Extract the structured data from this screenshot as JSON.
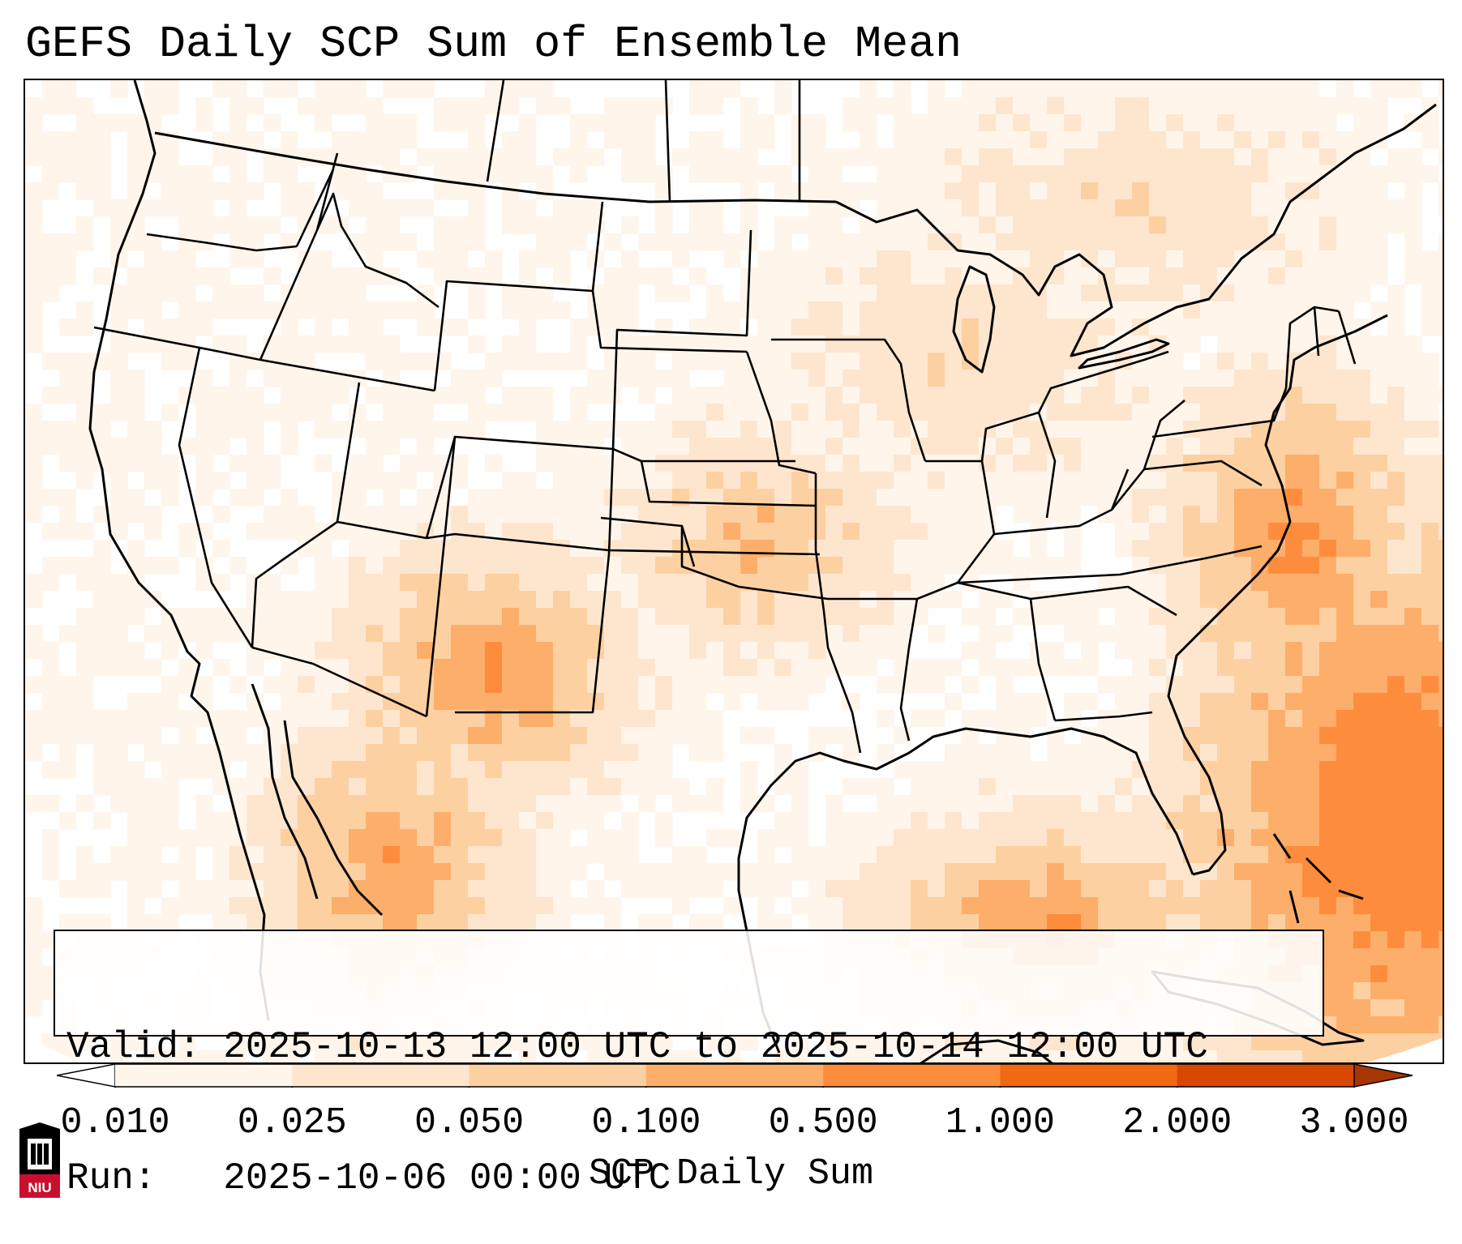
{
  "title": "GEFS Daily SCP Sum of Ensemble Mean",
  "info": {
    "valid_line": "Valid: 2025-10-13 12:00 UTC to 2025-10-14 12:00 UTC",
    "run_line": "Run:   2025-10-06 00:00 UTC"
  },
  "colorbar": {
    "label": "SCP Daily Sum",
    "ticks": [
      "0.010",
      "0.025",
      "0.050",
      "0.100",
      "0.500",
      "1.000",
      "2.000",
      "3.000"
    ],
    "colors": [
      "#fff5eb",
      "#fee6ce",
      "#fdd0a2",
      "#fdae6b",
      "#fd8d3c",
      "#f16913",
      "#d94801"
    ],
    "extend": "both"
  },
  "map": {
    "projection": "Lambert conformal, CONUS",
    "field": "SCP daily sum, ensemble mean",
    "regions": [
      {
        "name": "Southwest / Four Corners",
        "level": "0.100-0.500"
      },
      {
        "name": "Southern Plains",
        "level": "0.050-0.500"
      },
      {
        "name": "Central Plains",
        "level": "0.050-0.100"
      },
      {
        "name": "Gulf of Mexico",
        "level": "0.050-0.500"
      },
      {
        "name": "Western Atlantic",
        "level": "0.500-1.000"
      },
      {
        "name": "Northern tier / Great Lakes",
        "level": "0.010-0.025"
      }
    ]
  },
  "logo": {
    "text": "NIU",
    "color": "#c8102e"
  }
}
